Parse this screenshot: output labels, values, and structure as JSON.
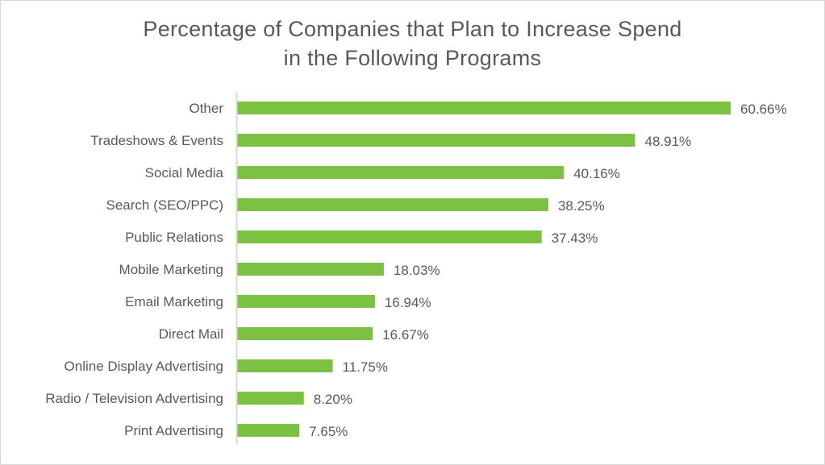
{
  "chart_data": {
    "type": "bar",
    "orientation": "horizontal",
    "title": "Percentage of Companies that Plan to Increase Spend in the Following Programs",
    "title_lines": [
      "Percentage of Companies that Plan to Increase Spend",
      "in the Following Programs"
    ],
    "categories": [
      "Other",
      "Tradeshows & Events",
      "Social Media",
      "Search (SEO/PPC)",
      "Public Relations",
      "Mobile Marketing",
      "Email Marketing",
      "Direct Mail",
      "Online Display Advertising",
      "Radio / Television Advertising",
      "Print Advertising"
    ],
    "values": [
      60.66,
      48.91,
      40.16,
      38.25,
      37.43,
      18.03,
      16.94,
      16.67,
      11.75,
      8.2,
      7.65
    ],
    "data_labels": [
      "60.66%",
      "48.91%",
      "40.16%",
      "38.25%",
      "37.43%",
      "18.03%",
      "16.94%",
      "16.67%",
      "11.75%",
      "8.20%",
      "7.65%"
    ],
    "xlabel": "",
    "ylabel": "",
    "xlim": [
      0,
      70
    ],
    "grid": false,
    "legend": "none",
    "colors": {
      "bar": "#7bc142",
      "text": "#595959",
      "axis": "#d9d9d9"
    }
  }
}
